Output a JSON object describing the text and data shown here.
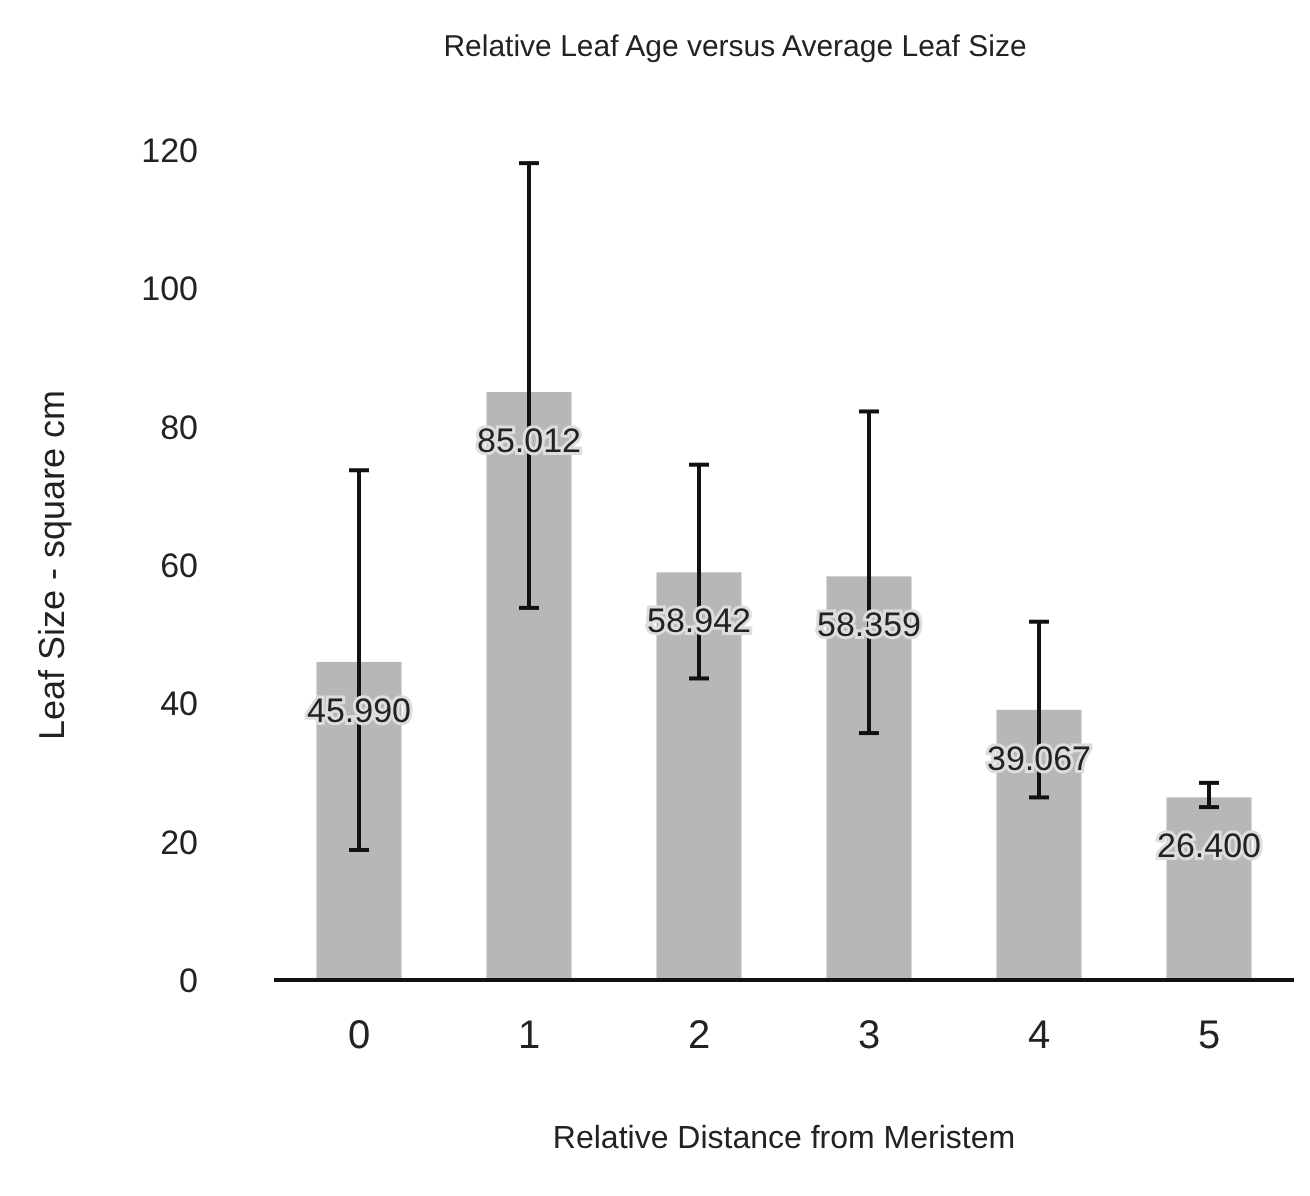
{
  "chart_data": {
    "type": "bar",
    "title": "Relative Leaf Age versus Average Leaf Size",
    "xlabel": "Relative Distance from Meristem",
    "ylabel": "Leaf Size - square cm",
    "categories": [
      "0",
      "1",
      "2",
      "3",
      "4",
      "5"
    ],
    "values": [
      45.99,
      85.012,
      58.942,
      58.359,
      39.067,
      26.4
    ],
    "errors": [
      [
        18.8,
        73.7
      ],
      [
        53.8,
        118.1
      ],
      [
        43.6,
        74.5
      ],
      [
        35.7,
        82.2
      ],
      [
        26.4,
        51.8
      ],
      [
        25.0,
        28.5
      ]
    ],
    "value_labels": [
      "45.990",
      "85.012",
      "58.942",
      "58.359",
      "39.067",
      "26.400"
    ],
    "color": "#b7b7b7",
    "ylim": [
      0,
      120
    ],
    "yticks": [
      0,
      20,
      40,
      60,
      80,
      100,
      120
    ],
    "grid": false
  }
}
